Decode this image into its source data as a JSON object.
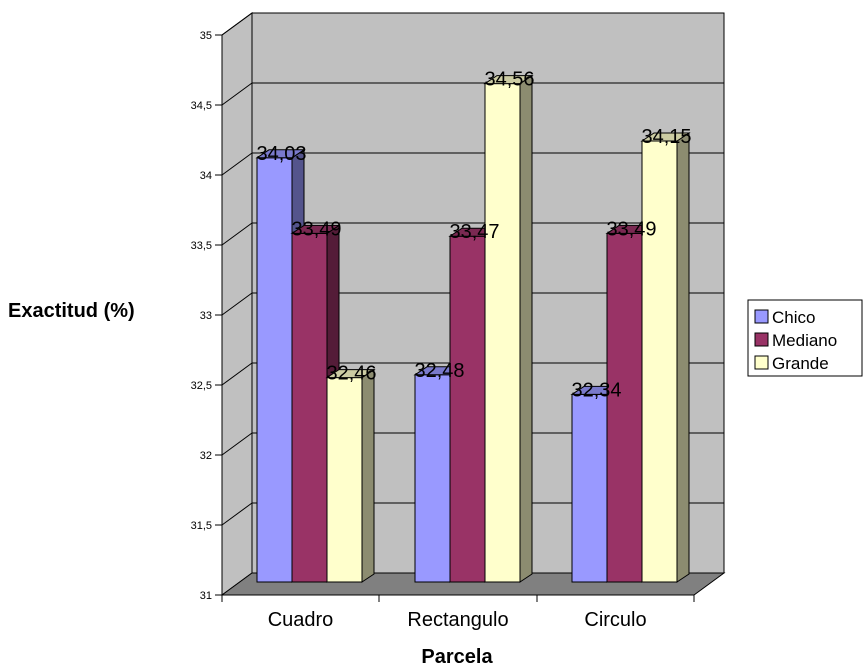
{
  "chart_data": {
    "type": "bar",
    "style": "3d-clustered-column",
    "title": "",
    "xlabel": "Parcela",
    "ylabel": "Exactitud (%)",
    "categories": [
      "Cuadro",
      "Rectangulo",
      "Circulo"
    ],
    "series": [
      {
        "name": "Chico",
        "values": [
          34.03,
          32.48,
          32.34
        ],
        "color": "#9999ff"
      },
      {
        "name": "Mediano",
        "values": [
          33.49,
          33.47,
          33.49
        ],
        "color": "#993366"
      },
      {
        "name": "Grande",
        "values": [
          32.46,
          34.56,
          34.15
        ],
        "color": "#ffffcc"
      }
    ],
    "data_labels": [
      [
        "34,03",
        "32,48",
        "32,34"
      ],
      [
        "33,49",
        "33,47",
        "33,49"
      ],
      [
        "32,46",
        "34,56",
        "34,15"
      ]
    ],
    "yticks": [
      31,
      31.5,
      32,
      32.5,
      33,
      33.5,
      34,
      34.5,
      35
    ],
    "ytick_labels": [
      "31",
      "31,5",
      "32",
      "32,5",
      "33",
      "33,5",
      "34",
      "34,5",
      "35"
    ],
    "ylim": [
      31,
      35
    ],
    "grid": true,
    "legend": "right",
    "colors": {
      "wall": "#c0c0c0",
      "floor": "#808080",
      "grid": "#000000"
    }
  }
}
